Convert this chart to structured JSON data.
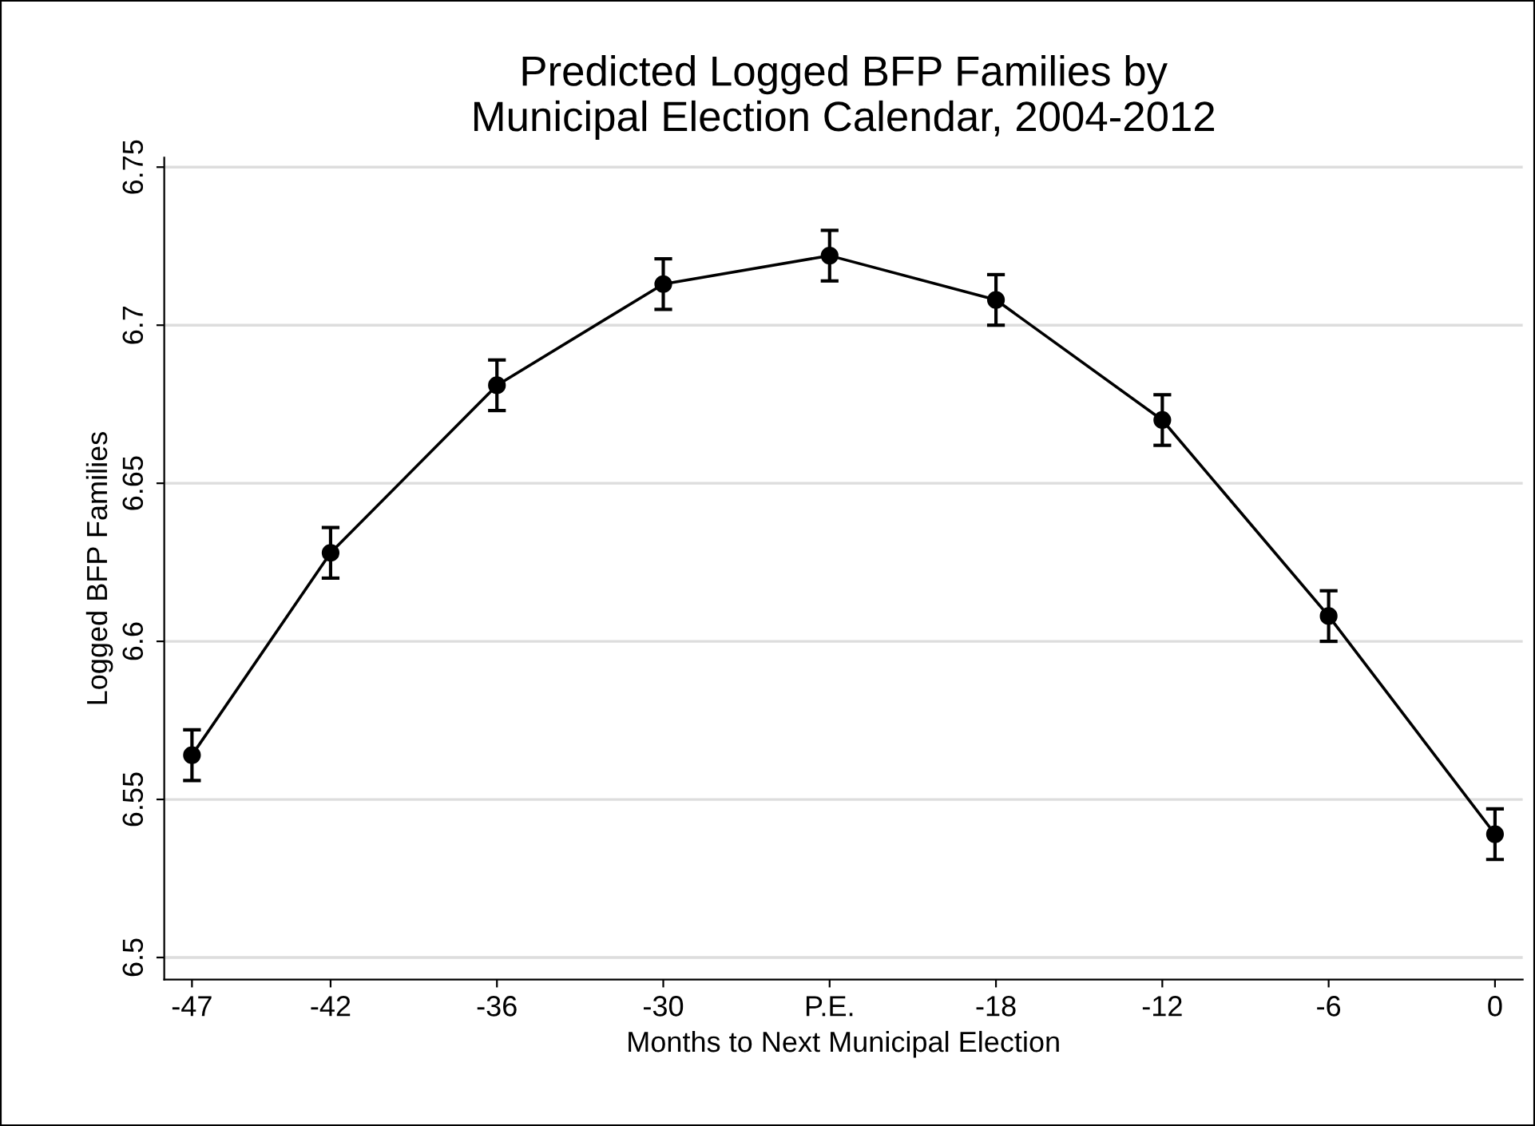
{
  "chart_data": {
    "type": "line",
    "title": "Predicted Logged BFP Families by\nMunicipal Election Calendar, 2004-2012",
    "xlabel": "Months to Next Municipal Election",
    "ylabel": "Logged BFP Families",
    "x": [
      -47,
      -42,
      -36,
      -30,
      -24,
      -18,
      -12,
      -6,
      0
    ],
    "series": [
      {
        "color": "#000000",
        "values": [
          6.564,
          6.628,
          6.681,
          6.713,
          6.722,
          6.708,
          6.67,
          6.608,
          6.539
        ],
        "errors": [
          0.008,
          0.008,
          0.008,
          0.008,
          0.008,
          0.008,
          0.008,
          0.008,
          0.008
        ]
      }
    ],
    "xlim": [
      -48,
      1
    ],
    "ylim": [
      6.493,
      6.753
    ],
    "xticks": [
      -47,
      -42,
      -36,
      -30,
      {
        "value": -24,
        "label": "P.E."
      },
      -18,
      -12,
      -6,
      0
    ],
    "yticks": [
      6.5,
      6.55,
      6.6,
      6.65,
      6.7,
      6.75
    ],
    "grid": "y",
    "marker": "circle",
    "line_style": "solid"
  }
}
